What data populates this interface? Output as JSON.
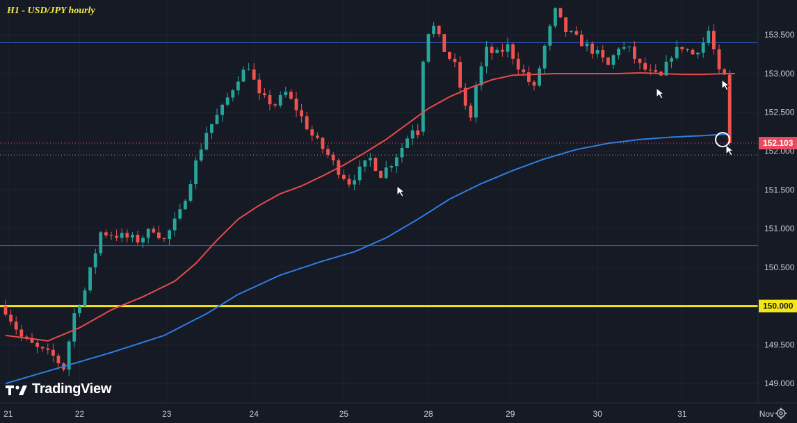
{
  "title": "H1 - USD/JPY hourly",
  "logo_text": "TradingView",
  "colors": {
    "background": "#161a25",
    "up_candle": "#26a69a",
    "down_candle": "#ef5350",
    "ma_fast": "#e84a4a",
    "ma_slow": "#2f7de1",
    "level_line": "#f5e617",
    "resistance_line": "#2f5fd6",
    "price_label": "#e84a5f"
  },
  "chart_data": {
    "type": "candlestick",
    "title": "H1 - USD/JPY hourly",
    "ylim": [
      148.75,
      153.95
    ],
    "y_ticks": [
      149.0,
      149.5,
      150.0,
      150.5,
      151.0,
      151.5,
      152.0,
      152.5,
      153.0,
      153.5
    ],
    "y_tick_labels": [
      "149.000",
      "149.500",
      "150.000",
      "150.500",
      "151.000",
      "151.500",
      "152.000",
      "152.500",
      "153.000",
      "153.500"
    ],
    "x_ticks": [
      {
        "label": "21",
        "pos": 0.5
      },
      {
        "label": "22",
        "pos": 14
      },
      {
        "label": "23",
        "pos": 30.5
      },
      {
        "label": "24",
        "pos": 47
      },
      {
        "label": "25",
        "pos": 64
      },
      {
        "label": "28",
        "pos": 80
      },
      {
        "label": "29",
        "pos": 95.5
      },
      {
        "label": "30",
        "pos": 112
      },
      {
        "label": "31",
        "pos": 128
      },
      {
        "label": "Nov",
        "pos": 144
      }
    ],
    "horizontal_lines": [
      {
        "value": 150.0,
        "color": "#f5e617",
        "width": 3,
        "label": "150.000"
      },
      {
        "value": 153.4,
        "color": "#2f5fd6",
        "width": 1
      },
      {
        "value": 150.78,
        "color": "#2f5fd6",
        "width": 1
      }
    ],
    "last_price": {
      "value": 152.103,
      "label": "152.103"
    },
    "close_anchors": [
      [
        0,
        149.95
      ],
      [
        3,
        149.6
      ],
      [
        6,
        149.45
      ],
      [
        9,
        149.35
      ],
      [
        11,
        149.2
      ],
      [
        13,
        149.9
      ],
      [
        15,
        150.2
      ],
      [
        18,
        150.95
      ],
      [
        22,
        150.9
      ],
      [
        25,
        150.85
      ],
      [
        28,
        151.0
      ],
      [
        30,
        150.85
      ],
      [
        33,
        151.2
      ],
      [
        36,
        151.85
      ],
      [
        38,
        152.25
      ],
      [
        41,
        152.55
      ],
      [
        44,
        152.95
      ],
      [
        46,
        153.1
      ],
      [
        48,
        152.7
      ],
      [
        51,
        152.6
      ],
      [
        53,
        152.75
      ],
      [
        55,
        152.55
      ],
      [
        58,
        152.2
      ],
      [
        61,
        151.95
      ],
      [
        63,
        151.75
      ],
      [
        65,
        151.6
      ],
      [
        67,
        151.75
      ],
      [
        69,
        151.9
      ],
      [
        71,
        151.7
      ],
      [
        73,
        151.85
      ],
      [
        75,
        152.05
      ],
      [
        77,
        152.3
      ],
      [
        78,
        152.25
      ],
      [
        79,
        153.2
      ],
      [
        80,
        153.55
      ],
      [
        81,
        153.6
      ],
      [
        83,
        153.3
      ],
      [
        85,
        153.1
      ],
      [
        87,
        152.55
      ],
      [
        88,
        152.45
      ],
      [
        89,
        152.85
      ],
      [
        91,
        153.3
      ],
      [
        93,
        153.25
      ],
      [
        95,
        153.35
      ],
      [
        97,
        153.1
      ],
      [
        99,
        152.9
      ],
      [
        100,
        152.8
      ],
      [
        102,
        153.35
      ],
      [
        104,
        153.8
      ],
      [
        106,
        153.55
      ],
      [
        108,
        153.45
      ],
      [
        110,
        153.35
      ],
      [
        112,
        153.25
      ],
      [
        114,
        153.1
      ],
      [
        116,
        153.35
      ],
      [
        118,
        153.3
      ],
      [
        120,
        153.1
      ],
      [
        122,
        153.0
      ],
      [
        124,
        152.95
      ],
      [
        126,
        153.25
      ],
      [
        128,
        153.35
      ],
      [
        130,
        153.25
      ],
      [
        132,
        153.4
      ],
      [
        133,
        153.55
      ],
      [
        134,
        153.3
      ],
      [
        135,
        153.0
      ],
      [
        136,
        152.95
      ],
      [
        137,
        152.1
      ]
    ],
    "ma_fast_anchors": [
      [
        0,
        149.62
      ],
      [
        8,
        149.55
      ],
      [
        14,
        149.72
      ],
      [
        20,
        149.95
      ],
      [
        26,
        150.12
      ],
      [
        32,
        150.32
      ],
      [
        36,
        150.55
      ],
      [
        40,
        150.85
      ],
      [
        44,
        151.12
      ],
      [
        48,
        151.3
      ],
      [
        52,
        151.45
      ],
      [
        56,
        151.55
      ],
      [
        60,
        151.68
      ],
      [
        64,
        151.82
      ],
      [
        68,
        151.98
      ],
      [
        72,
        152.15
      ],
      [
        76,
        152.35
      ],
      [
        80,
        152.55
      ],
      [
        84,
        152.7
      ],
      [
        88,
        152.82
      ],
      [
        92,
        152.92
      ],
      [
        96,
        152.98
      ],
      [
        100,
        152.99
      ],
      [
        104,
        153.0
      ],
      [
        108,
        153.0
      ],
      [
        112,
        153.0
      ],
      [
        116,
        153.0
      ],
      [
        120,
        153.01
      ],
      [
        124,
        153.0
      ],
      [
        128,
        152.99
      ],
      [
        132,
        152.99
      ],
      [
        136,
        153.0
      ],
      [
        138,
        153.0
      ]
    ],
    "ma_slow_anchors": [
      [
        0,
        149.0
      ],
      [
        10,
        149.2
      ],
      [
        20,
        149.4
      ],
      [
        30,
        149.62
      ],
      [
        38,
        149.9
      ],
      [
        44,
        150.15
      ],
      [
        52,
        150.4
      ],
      [
        60,
        150.58
      ],
      [
        66,
        150.7
      ],
      [
        72,
        150.88
      ],
      [
        78,
        151.12
      ],
      [
        84,
        151.38
      ],
      [
        90,
        151.58
      ],
      [
        96,
        151.75
      ],
      [
        102,
        151.9
      ],
      [
        108,
        152.02
      ],
      [
        114,
        152.1
      ],
      [
        120,
        152.15
      ],
      [
        126,
        152.18
      ],
      [
        132,
        152.2
      ],
      [
        137,
        152.22
      ]
    ]
  },
  "annotations": [
    {
      "type": "arrow",
      "x": 571,
      "y": 268
    },
    {
      "type": "arrow",
      "x": 944,
      "y": 127
    },
    {
      "type": "arrow",
      "x": 1038,
      "y": 115
    },
    {
      "type": "arrow",
      "x": 1044,
      "y": 209
    },
    {
      "type": "circle",
      "x": 1039,
      "y": 201,
      "r": 10
    }
  ]
}
